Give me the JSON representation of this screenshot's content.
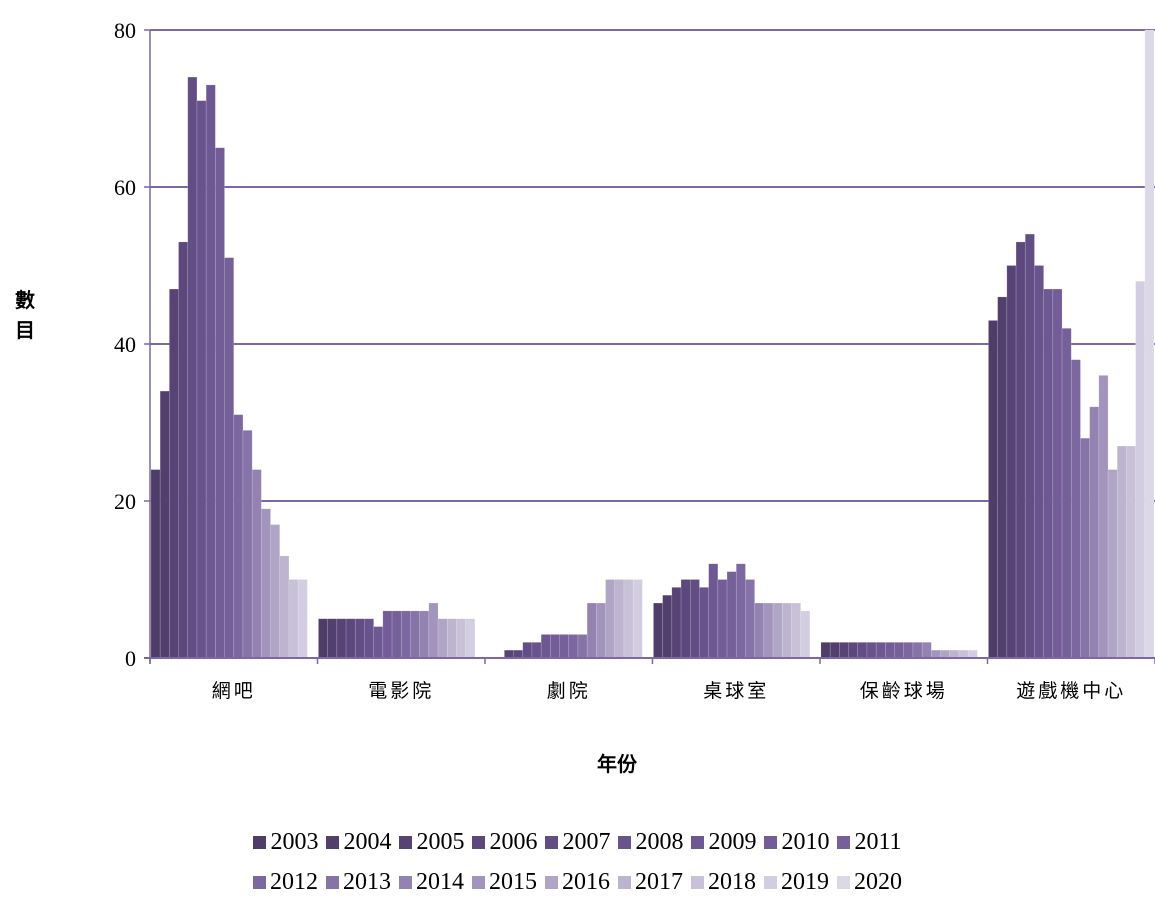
{
  "chart_data": {
    "type": "bar",
    "ylabel": "數目",
    "xlabel": "年份",
    "ylim": [
      0,
      80
    ],
    "yticks": [
      0,
      20,
      40,
      60,
      80
    ],
    "grid": true,
    "legend_position": "bottom",
    "categories": [
      "網吧",
      "電影院",
      "劇院",
      "桌球室",
      "保齡球場",
      "遊戲機中心"
    ],
    "series": [
      {
        "name": "2003",
        "color": "#4e3d68",
        "values": [
          24,
          5,
          0,
          7,
          2,
          43
        ]
      },
      {
        "name": "2004",
        "color": "#523f6e",
        "values": [
          34,
          5,
          0,
          8,
          2,
          46
        ]
      },
      {
        "name": "2005",
        "color": "#574375",
        "values": [
          47,
          5,
          1,
          9,
          2,
          50
        ]
      },
      {
        "name": "2006",
        "color": "#5c487c",
        "values": [
          53,
          5,
          1,
          10,
          2,
          53
        ]
      },
      {
        "name": "2007",
        "color": "#624d84",
        "values": [
          74,
          5,
          2,
          10,
          2,
          54
        ]
      },
      {
        "name": "2008",
        "color": "#68538c",
        "values": [
          71,
          5,
          2,
          9,
          2,
          50
        ]
      },
      {
        "name": "2009",
        "color": "#6e5893",
        "values": [
          73,
          4,
          3,
          12,
          2,
          47
        ]
      },
      {
        "name": "2010",
        "color": "#735c98",
        "values": [
          65,
          6,
          3,
          10,
          2,
          47
        ]
      },
      {
        "name": "2011",
        "color": "#76609a",
        "values": [
          51,
          6,
          3,
          11,
          2,
          42
        ]
      },
      {
        "name": "2012",
        "color": "#7c67a0",
        "values": [
          31,
          6,
          3,
          12,
          2,
          38
        ]
      },
      {
        "name": "2013",
        "color": "#8674a8",
        "values": [
          29,
          6,
          3,
          10,
          2,
          28
        ]
      },
      {
        "name": "2014",
        "color": "#9483b2",
        "values": [
          24,
          6,
          7,
          7,
          2,
          32
        ]
      },
      {
        "name": "2015",
        "color": "#a294bc",
        "values": [
          19,
          7,
          7,
          7,
          1,
          36
        ]
      },
      {
        "name": "2016",
        "color": "#b0a5c6",
        "values": [
          17,
          5,
          10,
          7,
          1,
          24
        ]
      },
      {
        "name": "2017",
        "color": "#bdb4cf",
        "values": [
          13,
          5,
          10,
          7,
          1,
          27
        ]
      },
      {
        "name": "2018",
        "color": "#c8c1d8",
        "values": [
          10,
          5,
          10,
          7,
          1,
          27
        ]
      },
      {
        "name": "2019",
        "color": "#d2cde0",
        "values": [
          10,
          5,
          10,
          6,
          1,
          48
        ]
      },
      {
        "name": "2020",
        "color": "#dcd8e8",
        "values": [
          0,
          0,
          0,
          0,
          0,
          80
        ]
      }
    ],
    "gridline_color": "#7b68a6"
  }
}
